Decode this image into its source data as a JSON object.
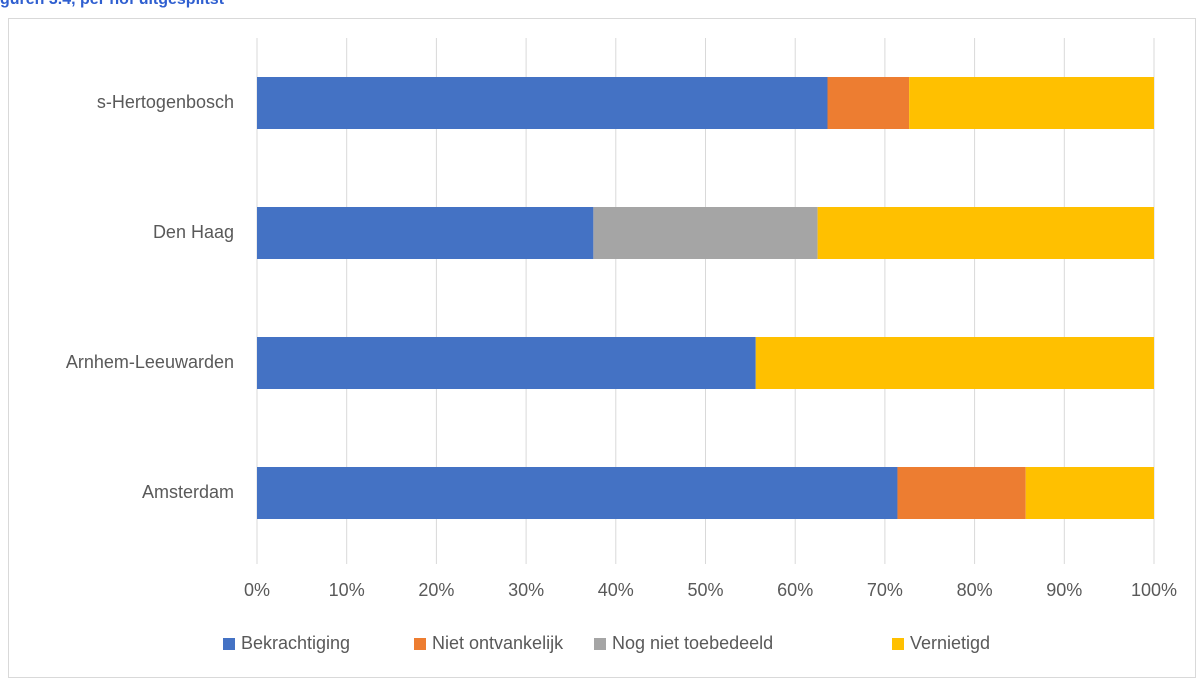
{
  "caption": "guren 3.4, per hof uitgesplitst",
  "chart_data": {
    "type": "bar",
    "orientation": "horizontal",
    "stacked": "percent",
    "categories": [
      "Amsterdam",
      "Arnhem-Leeuwarden",
      "Den Haag",
      "s-Hertogenbosch"
    ],
    "series": [
      {
        "name": "Bekrachtiging",
        "color": "#4472C4",
        "values": [
          71.4,
          55.6,
          37.5,
          63.6
        ]
      },
      {
        "name": "Niet ontvankelijk",
        "color": "#ED7D31",
        "values": [
          14.3,
          0,
          0,
          9.1
        ]
      },
      {
        "name": "Nog niet toebedeeld",
        "color": "#A5A5A5",
        "values": [
          0,
          0,
          25.0,
          0
        ]
      },
      {
        "name": "Vernietigd",
        "color": "#FFC000",
        "values": [
          14.3,
          44.4,
          37.5,
          27.3
        ]
      }
    ],
    "xlim": [
      0,
      100
    ],
    "xticks": [
      "0%",
      "10%",
      "20%",
      "30%",
      "40%",
      "50%",
      "60%",
      "70%",
      "80%",
      "90%",
      "100%"
    ],
    "grid": true,
    "legend_position": "bottom",
    "title": "",
    "xlabel": "",
    "ylabel": ""
  }
}
